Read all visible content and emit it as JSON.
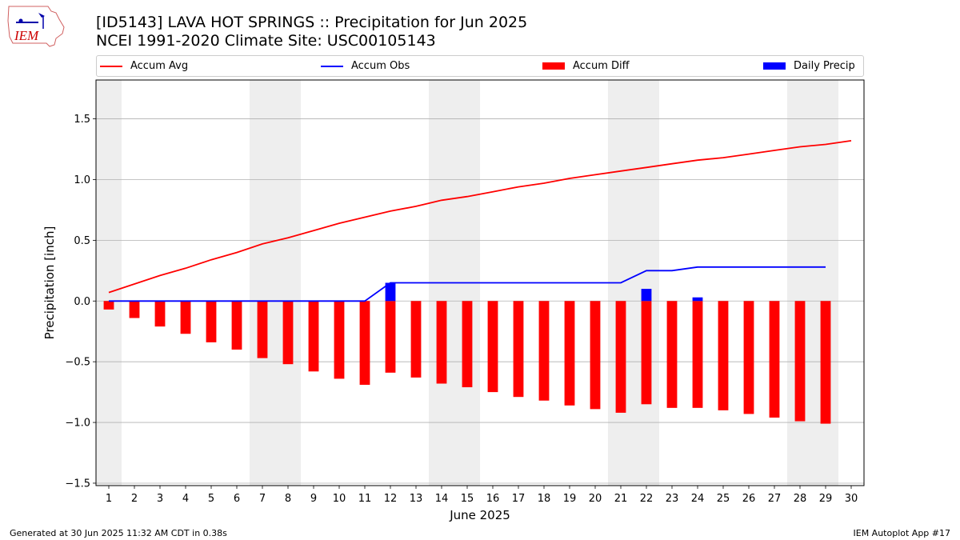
{
  "header": {
    "logo_text": "IEM",
    "title_line1": "[ID5143] LAVA HOT SPRINGS :: Precipitation for Jun 2025",
    "title_line2": "NCEI 1991-2020 Climate Site: USC00105143"
  },
  "legend": [
    {
      "label": "Accum Avg",
      "kind": "line",
      "color": "#ff0000"
    },
    {
      "label": "Accum Obs",
      "kind": "line",
      "color": "#0000ff"
    },
    {
      "label": "Accum Diff",
      "kind": "bar",
      "color": "#ff0000"
    },
    {
      "label": "Daily Precip",
      "kind": "bar",
      "color": "#0000ff"
    }
  ],
  "footer": {
    "left": "Generated at 30 Jun 2025 11:32 AM CDT in 0.38s",
    "right": "IEM Autoplot App #17"
  },
  "chart_data": {
    "type": "bar",
    "xlabel": "June 2025",
    "ylabel": "Precipitation [inch]",
    "xlim": [
      0.5,
      30.5
    ],
    "ylim": [
      -1.52,
      1.82
    ],
    "x_ticks": [
      1,
      2,
      3,
      4,
      5,
      6,
      7,
      8,
      9,
      10,
      11,
      12,
      13,
      14,
      15,
      16,
      17,
      18,
      19,
      20,
      21,
      22,
      23,
      24,
      25,
      26,
      27,
      28,
      29,
      30
    ],
    "y_ticks": [
      -1.5,
      -1.0,
      -0.5,
      0.0,
      0.5,
      1.0,
      1.5
    ],
    "y_tick_labels": [
      "−1.5",
      "−1.0",
      "−0.5",
      "0.0",
      "0.5",
      "1.0",
      "1.5"
    ],
    "grid": "horizontal",
    "legend_position": "top",
    "weekend_shading": [
      [
        0.5,
        1.5
      ],
      [
        6.5,
        8.5
      ],
      [
        13.5,
        15.5
      ],
      [
        20.5,
        22.5
      ],
      [
        27.5,
        29.5
      ]
    ],
    "shading_color": "#eeeeee",
    "series": [
      {
        "name": "Accum Avg",
        "kind": "line",
        "color": "#ff0000",
        "x": [
          1,
          2,
          3,
          4,
          5,
          6,
          7,
          8,
          9,
          10,
          11,
          12,
          13,
          14,
          15,
          16,
          17,
          18,
          19,
          20,
          21,
          22,
          23,
          24,
          25,
          26,
          27,
          28,
          29,
          30
        ],
        "values": [
          0.07,
          0.14,
          0.21,
          0.27,
          0.34,
          0.4,
          0.47,
          0.52,
          0.58,
          0.64,
          0.69,
          0.74,
          0.78,
          0.83,
          0.86,
          0.9,
          0.94,
          0.97,
          1.01,
          1.04,
          1.07,
          1.1,
          1.13,
          1.16,
          1.18,
          1.21,
          1.24,
          1.27,
          1.29,
          1.32
        ]
      },
      {
        "name": "Accum Obs",
        "kind": "line",
        "color": "#0000ff",
        "x": [
          1,
          2,
          3,
          4,
          5,
          6,
          7,
          8,
          9,
          10,
          11,
          12,
          13,
          14,
          15,
          16,
          17,
          18,
          19,
          20,
          21,
          22,
          23,
          24,
          25,
          26,
          27,
          28,
          29
        ],
        "values": [
          0,
          0,
          0,
          0,
          0,
          0,
          0,
          0,
          0,
          0,
          0,
          0.15,
          0.15,
          0.15,
          0.15,
          0.15,
          0.15,
          0.15,
          0.15,
          0.15,
          0.15,
          0.25,
          0.25,
          0.28,
          0.28,
          0.28,
          0.28,
          0.28,
          0.28
        ]
      },
      {
        "name": "Accum Diff",
        "kind": "bar",
        "color": "#ff0000",
        "x": [
          1,
          2,
          3,
          4,
          5,
          6,
          7,
          8,
          9,
          10,
          11,
          12,
          13,
          14,
          15,
          16,
          17,
          18,
          19,
          20,
          21,
          22,
          23,
          24,
          25,
          26,
          27,
          28,
          29
        ],
        "values": [
          -0.07,
          -0.14,
          -0.21,
          -0.27,
          -0.34,
          -0.4,
          -0.47,
          -0.52,
          -0.58,
          -0.64,
          -0.69,
          -0.59,
          -0.63,
          -0.68,
          -0.71,
          -0.75,
          -0.79,
          -0.82,
          -0.86,
          -0.89,
          -0.92,
          -0.85,
          -0.88,
          -0.88,
          -0.9,
          -0.93,
          -0.96,
          -0.99,
          -1.01
        ]
      },
      {
        "name": "Daily Precip",
        "kind": "bar",
        "color": "#0000ff",
        "x": [
          12,
          22,
          24
        ],
        "values": [
          0.15,
          0.1,
          0.03
        ]
      }
    ]
  }
}
